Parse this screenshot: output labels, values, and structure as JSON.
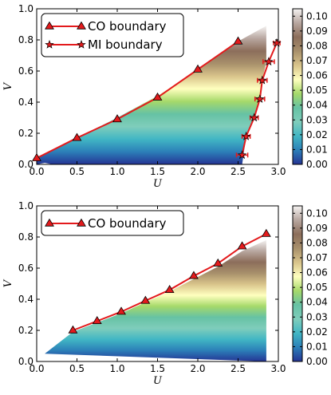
{
  "chart_data": [
    {
      "type": "heatmap",
      "xlabel": "U",
      "ylabel": "V",
      "xlim": [
        0.0,
        3.0
      ],
      "ylim": [
        0.0,
        1.0
      ],
      "xticks": [
        "0.0",
        "0.5",
        "1.0",
        "1.5",
        "2.0",
        "2.5",
        "3.0"
      ],
      "yticks": [
        "0.0",
        "0.2",
        "0.4",
        "0.6",
        "0.8",
        "1.0"
      ],
      "colorbar": {
        "min": 0.0,
        "max": 0.105,
        "ticks": [
          "0.00",
          "0.01",
          "0.02",
          "0.03",
          "0.04",
          "0.05",
          "0.06",
          "0.07",
          "0.08",
          "0.09",
          "0.10"
        ],
        "colors": [
          "#253494",
          "#2c7fb8",
          "#41b6c4",
          "#7fcdbb",
          "#66c2a4",
          "#a6d96a",
          "#ffffbf",
          "#d9c48b",
          "#a8906b",
          "#8c6e5b",
          "#b8a7a0",
          "#f5f3f2"
        ]
      },
      "series": [
        {
          "name": "CO boundary",
          "color": "#e31a1c",
          "marker": "triangle",
          "x": [
            0.0,
            0.5,
            1.0,
            1.5,
            2.0,
            2.5
          ],
          "y": [
            0.04,
            0.17,
            0.29,
            0.43,
            0.61,
            0.79
          ]
        },
        {
          "name": "MI boundary",
          "color": "#e31a1c",
          "marker": "star",
          "x": [
            2.55,
            2.6,
            2.7,
            2.77,
            2.8,
            2.88,
            2.98
          ],
          "y": [
            0.06,
            0.18,
            0.3,
            0.42,
            0.54,
            0.66,
            0.78
          ],
          "xerr": [
            0.07,
            0.05,
            0.05,
            0.06,
            0.06,
            0.07,
            0.04
          ]
        }
      ],
      "region": {
        "lower_x": [
          0.0,
          0.1,
          0.2,
          2.9
        ],
        "lower_y": [
          0.0,
          0.01,
          0.0,
          0.0
        ],
        "upper_x": [
          0.0,
          0.5,
          1.0,
          1.5,
          2.0,
          2.5,
          2.85
        ],
        "upper_y": [
          0.04,
          0.17,
          0.3,
          0.44,
          0.61,
          0.79,
          0.89
        ],
        "right_x": [
          2.55,
          2.6,
          2.7,
          2.77,
          2.8,
          2.85,
          2.85
        ],
        "right_y": [
          0.0,
          0.18,
          0.3,
          0.42,
          0.54,
          0.66,
          0.89
        ]
      }
    },
    {
      "type": "heatmap",
      "xlabel": "U",
      "ylabel": "V",
      "xlim": [
        0.0,
        3.0
      ],
      "ylim": [
        0.0,
        1.0
      ],
      "xticks": [
        "0.0",
        "0.5",
        "1.0",
        "1.5",
        "2.0",
        "2.5",
        "3.0"
      ],
      "yticks": [
        "0.0",
        "0.2",
        "0.4",
        "0.6",
        "0.8",
        "1.0"
      ],
      "colorbar": {
        "min": 0.0,
        "max": 0.105,
        "ticks": [
          "0.00",
          "0.01",
          "0.02",
          "0.03",
          "0.04",
          "0.05",
          "0.06",
          "0.07",
          "0.08",
          "0.09",
          "0.10"
        ],
        "colors": [
          "#253494",
          "#2c7fb8",
          "#41b6c4",
          "#7fcdbb",
          "#66c2a4",
          "#a6d96a",
          "#ffffbf",
          "#d9c48b",
          "#a8906b",
          "#8c6e5b",
          "#b8a7a0",
          "#f5f3f2"
        ]
      },
      "series": [
        {
          "name": "CO boundary",
          "color": "#e31a1c",
          "marker": "triangle",
          "x": [
            0.45,
            0.75,
            1.05,
            1.35,
            1.65,
            1.95,
            2.25,
            2.55,
            2.85
          ],
          "y": [
            0.2,
            0.26,
            0.32,
            0.39,
            0.46,
            0.55,
            0.63,
            0.74,
            0.82
          ]
        }
      ],
      "region": {
        "lower_x": [
          0.1,
          0.1,
          2.85
        ],
        "lower_y": [
          0.0,
          0.05,
          0.0
        ],
        "upper_x": [
          0.1,
          0.45,
          0.75,
          1.05,
          1.35,
          1.65,
          1.95,
          2.25,
          2.55,
          2.85
        ],
        "upper_y": [
          0.05,
          0.19,
          0.25,
          0.31,
          0.38,
          0.45,
          0.53,
          0.61,
          0.71,
          0.78
        ]
      }
    }
  ]
}
